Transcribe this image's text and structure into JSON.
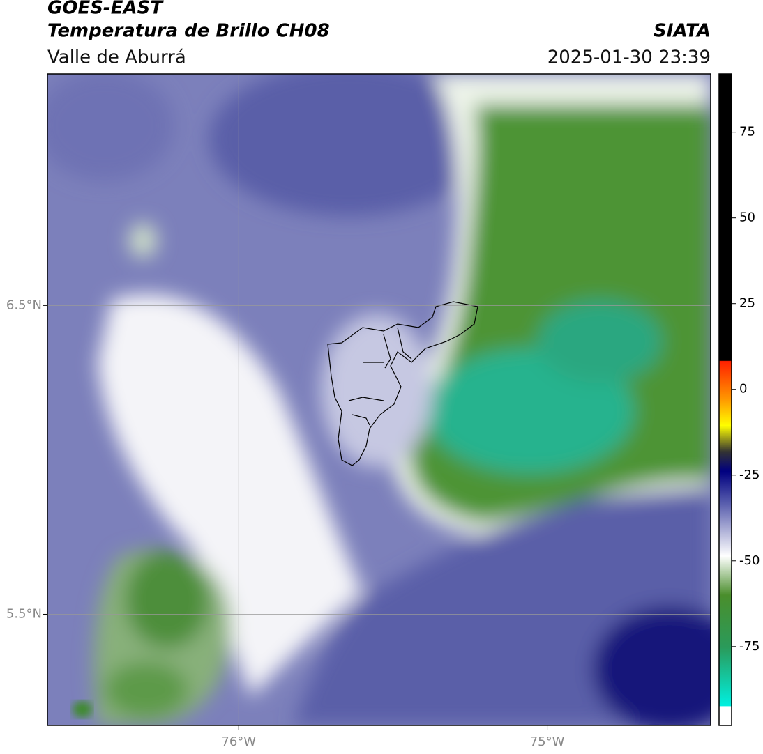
{
  "header": {
    "title": "GOES-EAST",
    "subtitle": "Temperatura de Brillo CH08",
    "region": "Valle de Aburrá",
    "source": "SIATA",
    "datetime": "2025-01-30 23:39"
  },
  "map": {
    "xlim": [
      -76.62,
      -74.47
    ],
    "ylim": [
      5.14,
      7.25
    ],
    "lat_ticks": [
      {
        "value": 6.5,
        "label": "6.5°N"
      },
      {
        "value": 5.5,
        "label": "5.5°N"
      }
    ],
    "lon_ticks": [
      {
        "value": -76,
        "label": "76°W"
      },
      {
        "value": -75,
        "label": "75°W"
      }
    ]
  },
  "colorbar": {
    "lim": [
      -98,
      92
    ],
    "ticks": [
      75,
      50,
      25,
      0,
      -25,
      -50,
      -75
    ]
  }
}
